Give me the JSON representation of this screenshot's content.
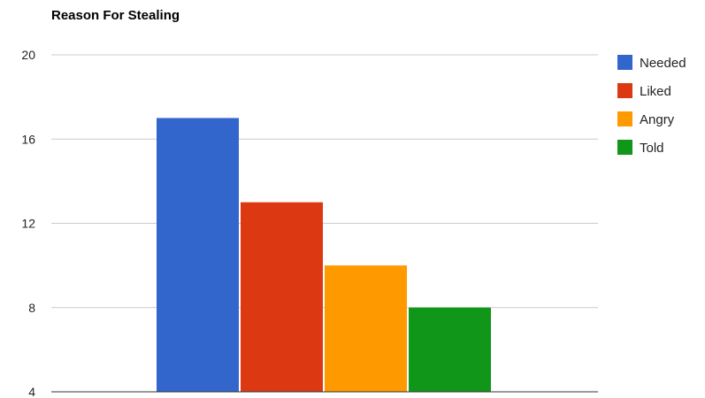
{
  "chart_data": {
    "type": "bar",
    "title": "Reason For Stealing",
    "xlabel": "",
    "ylabel": "",
    "ylim": [
      4,
      20
    ],
    "yticks": [
      "4",
      "8",
      "12",
      "16",
      "20"
    ],
    "grid": true,
    "legend_position": "right",
    "categories": [
      ""
    ],
    "series": [
      {
        "name": "Needed",
        "values": [
          17
        ],
        "color": "#3366cc"
      },
      {
        "name": "Liked",
        "values": [
          13
        ],
        "color": "#dc3912"
      },
      {
        "name": "Angry",
        "values": [
          10
        ],
        "color": "#ff9900"
      },
      {
        "name": "Told",
        "values": [
          8
        ],
        "color": "#109618"
      }
    ]
  }
}
